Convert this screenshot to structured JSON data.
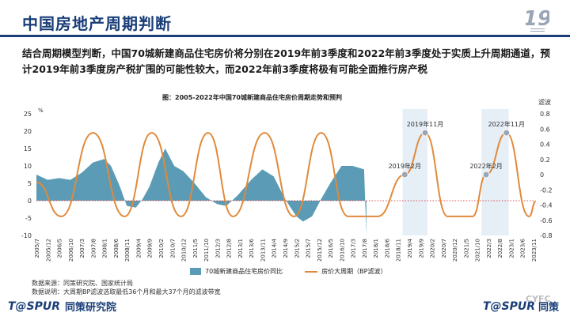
{
  "header": {
    "title": "中国房地产周期判断",
    "subtitle": "结合周期模型判断，中国70城新建商品住宅房价将分别在2019年前3季度和2022年前3季度处于实质上升周期通道，预计2019年前3季度房产税扩围的可能性较大，而2022年前3季度将极有可能全面推行房产税"
  },
  "footer": {
    "source": "数据来源：同策研究院、国家统计局",
    "note": "数据说明：大周期BP滤波选取最低36个月和最大37个月的滤波带宽",
    "brand_left": "T@SPUR",
    "org_left": "同策研究院",
    "brand_right": "T@SPUR",
    "org_right": "同策",
    "watermark": "CYFC"
  },
  "colors": {
    "title": "#1a3e78",
    "area": "#5b9bb5",
    "line": "#e08a3c",
    "zero_line": "#d9534f",
    "highlight": "#e6eef6"
  },
  "chart_data": {
    "type": "area",
    "title": "图：2005-2022年中国70城新建商品住宅房价周期走势和预判",
    "left_axis_unit": "%",
    "right_axis_label": "滤波",
    "ylim_left": [
      -10,
      25
    ],
    "ylim_right": [
      -0.8,
      0.8
    ],
    "yticks_left": [
      25,
      20,
      15,
      10,
      5,
      0,
      -5,
      -10
    ],
    "yticks_right": [
      0.8,
      0.6,
      0.4,
      0.2,
      0,
      -0.2,
      -0.4,
      -0.6,
      -0.8
    ],
    "x_tick_labels": [
      "2005/7",
      "2005/12",
      "2006/5",
      "2006/10",
      "2007/3",
      "2007/8",
      "2008/1",
      "2008/6",
      "2008/11",
      "2009/4",
      "2009/9",
      "2010/2",
      "2010/7",
      "2010/12",
      "2011/5",
      "2011/10",
      "2012/3",
      "2012/8",
      "2013/1",
      "2013/6",
      "2013/11",
      "2014/4",
      "2014/9",
      "2015/2",
      "2015/7",
      "2015/12",
      "2016/5",
      "2016/10",
      "2017/3",
      "2017/8",
      "2018/1",
      "2018/6",
      "2018/11",
      "2019/4",
      "2019/9",
      "2020/2",
      "2020/7",
      "2020/12",
      "2021/5",
      "2021/10",
      "2022/3",
      "2022/8",
      "2023/1",
      "2023/6",
      "2023/11"
    ],
    "series": [
      {
        "name": "70城新建商品住宅房价同比",
        "axis": "left",
        "x": [
          "2005/7",
          "2005/12",
          "2006/5",
          "2006/10",
          "2007/3",
          "2007/8",
          "2008/1",
          "2008/4",
          "2008/8",
          "2008/11",
          "2009/3",
          "2009/6",
          "2009/9",
          "2010/1",
          "2010/4",
          "2010/8",
          "2010/12",
          "2011/5",
          "2011/10",
          "2012/3",
          "2012/7",
          "2012/12",
          "2013/6",
          "2013/11",
          "2014/4",
          "2014/9",
          "2015/2",
          "2015/5",
          "2015/9",
          "2016/1",
          "2016/5",
          "2016/10",
          "2017/3",
          "2017/8",
          "2017/9"
        ],
        "values": [
          7.5,
          6.0,
          6.5,
          6.0,
          8.0,
          11.0,
          12.0,
          10.0,
          4.0,
          -1.5,
          -2.0,
          0.5,
          4.0,
          11.0,
          15.0,
          10.0,
          8.5,
          5.0,
          1.0,
          -1.0,
          -1.5,
          1.5,
          6.0,
          9.0,
          7.0,
          0.5,
          -4.5,
          -6.0,
          -4.5,
          0.5,
          5.0,
          10.0,
          10.0,
          9.0,
          -10.0
        ]
      },
      {
        "name": "房价大周期（BP滤波）",
        "axis": "right",
        "x": [
          "2005/7",
          "2006/6",
          "2007/8",
          "2008/10",
          "2009/10",
          "2010/11",
          "2011/11",
          "2012/10",
          "2013/12",
          "2015/1",
          "2016/1",
          "2017/1",
          "2018/2",
          "2019/2",
          "2019/11",
          "2020/9",
          "2021/8",
          "2022/2",
          "2022/11",
          "2023/9",
          "2023/12"
        ],
        "values": [
          -0.1,
          -0.55,
          0.55,
          -0.55,
          0.55,
          -0.55,
          0.55,
          -0.55,
          0.55,
          -0.55,
          0.55,
          -0.55,
          -0.55,
          0.0,
          0.55,
          -0.55,
          -0.55,
          0.0,
          0.55,
          -0.55,
          -0.35
        ]
      }
    ],
    "annotations": [
      "2019年2月",
      "2019年11月",
      "2022年2月",
      "2022年11月"
    ]
  }
}
